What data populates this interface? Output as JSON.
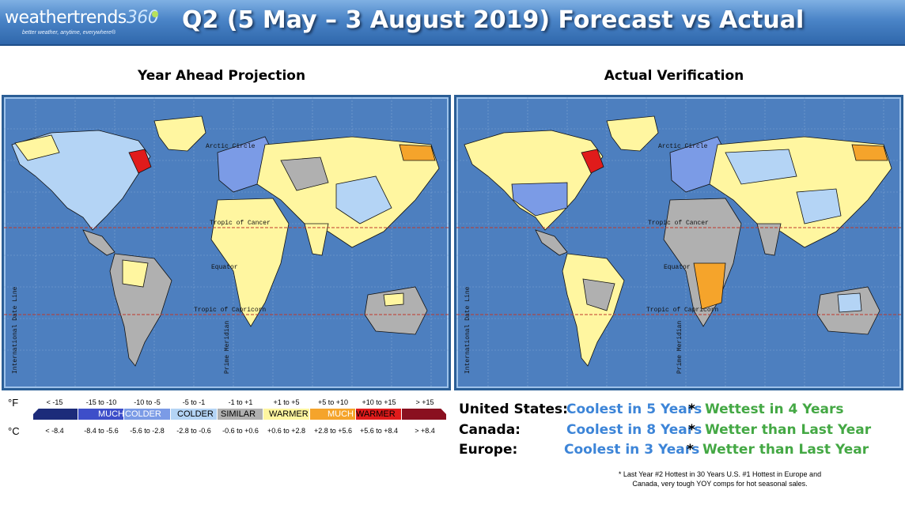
{
  "header": {
    "logo_text": "weathertrends",
    "logo_number": "360",
    "logo_tagline": "better weather, anytime, everywhere®",
    "title": "Q2 (5 May – 3 August 2019) Forecast vs Actual"
  },
  "panels": {
    "left_title": "Year Ahead Projection",
    "right_title": "Actual Verification"
  },
  "map_labels": {
    "arctic": "Arctic Circle",
    "cancer": "Tropic of Cancer",
    "equator": "Equator",
    "capricorn": "Tropic of Capricorn",
    "meridian": "Prime Meridian",
    "dateline": "International Date Line"
  },
  "legend": {
    "unit_f": "°F",
    "unit_c": "°C",
    "f_ranges": [
      "< -15",
      "-15 to -10",
      "-10 to -5",
      "-5 to -1",
      "-1 to +1",
      "+1 to +5",
      "+5 to +10",
      "+10 to +15",
      "> +15"
    ],
    "c_ranges": [
      "< -8.4",
      "-8.4 to -5.6",
      "-5.6 to -2.8",
      "-2.8 to -0.6",
      "-0.6 to +0.6",
      "+0.6 to +2.8",
      "+2.8 to +5.6",
      "+5.6 to +8.4",
      "> +8.4"
    ],
    "labels": {
      "much_cold": "MUCH",
      "colder1": "COLDER",
      "colder2": "COLDER",
      "similar": "SIMILAR",
      "warmer1": "WARMER",
      "much_warm": "MUCH",
      "warmer2": "WARMER"
    },
    "colors": [
      "#1c2b7a",
      "#3d4ec9",
      "#7b9be6",
      "#b4d4f5",
      "#b0b0b0",
      "#fff6a0",
      "#f5a42b",
      "#e01b1b",
      "#8a1020"
    ]
  },
  "summary": {
    "rows": [
      {
        "country": "United States:",
        "cool": "Coolest in 5 Years",
        "asterisk": "*",
        "wet": "Wettest in 4 Years"
      },
      {
        "country": "Canada:",
        "cool": "Coolest in 8 Years",
        "asterisk": "*",
        "wet": "Wetter than Last Year"
      },
      {
        "country": "Europe:",
        "cool": "Coolest in 3 Years",
        "asterisk": "*",
        "wet": "Wetter than Last Year"
      }
    ],
    "footnote_1": "* Last Year #2 Hottest in 30 Years U.S. #1 Hottest in Europe and",
    "footnote_2": "Canada, very tough YOY comps for hot seasonal sales."
  }
}
